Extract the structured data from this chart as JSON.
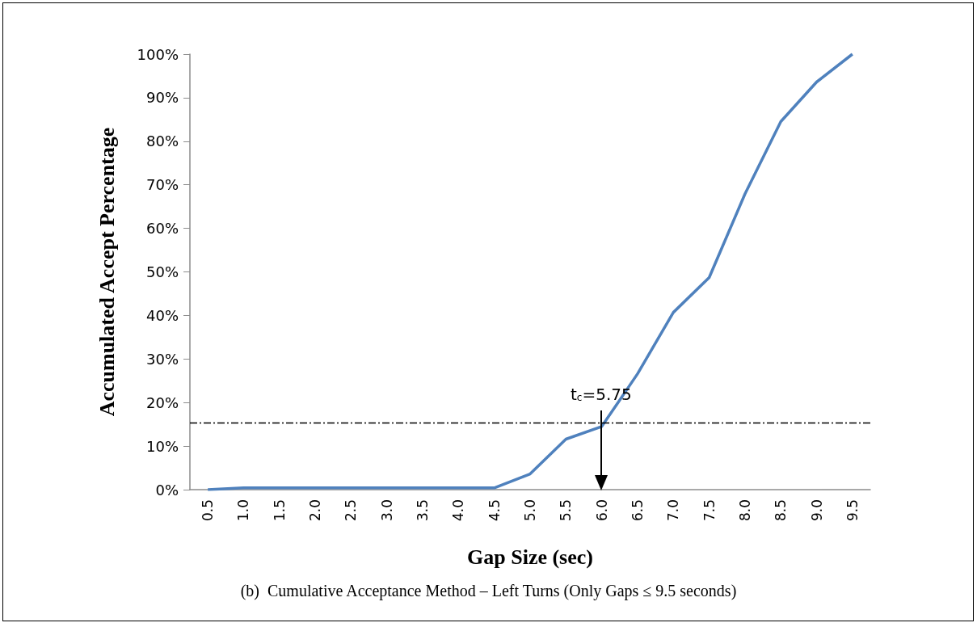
{
  "chart_data": {
    "type": "line",
    "xlabel": "Gap Size (sec)",
    "ylabel": "Accumulated Accept Percentage",
    "categories": [
      "0.5",
      "1.0",
      "1.5",
      "2.0",
      "2.5",
      "3.0",
      "3.5",
      "4.0",
      "4.5",
      "5.0",
      "5.5",
      "6.0",
      "6.5",
      "7.0",
      "7.5",
      "8.0",
      "8.5",
      "9.0",
      "9.5"
    ],
    "series": [
      {
        "color": "#4f81bd",
        "values": [
          0,
          0.4,
          0.4,
          0.4,
          0.4,
          0.4,
          0.4,
          0.4,
          0.4,
          3.6,
          11.6,
          14.5,
          26.6,
          40.7,
          48.7,
          67.9,
          84.5,
          93.6,
          100
        ]
      }
    ],
    "ylim": [
      0,
      100
    ],
    "yticks": [
      {
        "value": 0,
        "label": "0%"
      },
      {
        "value": 10,
        "label": "10%"
      },
      {
        "value": 20,
        "label": "20%"
      },
      {
        "value": 30,
        "label": "30%"
      },
      {
        "value": 40,
        "label": "40%"
      },
      {
        "value": 50,
        "label": "50%"
      },
      {
        "value": 60,
        "label": "60%"
      },
      {
        "value": 70,
        "label": "70%"
      },
      {
        "value": 80,
        "label": "80%"
      },
      {
        "value": 90,
        "label": "90%"
      },
      {
        "value": 100,
        "label": "100%"
      }
    ],
    "ref_lines": [
      {
        "axis": "y",
        "value": 15.3,
        "color": "#000000",
        "line_style": "dashdot"
      }
    ],
    "annotations": [
      "t$_{c}$=5.75",
      "(b)  Cumulative Acceptance Method – Left Turns (Only Gaps ≤ 9.5 seconds)"
    ],
    "grid": false,
    "marker": "none",
    "line_style": "solid"
  }
}
